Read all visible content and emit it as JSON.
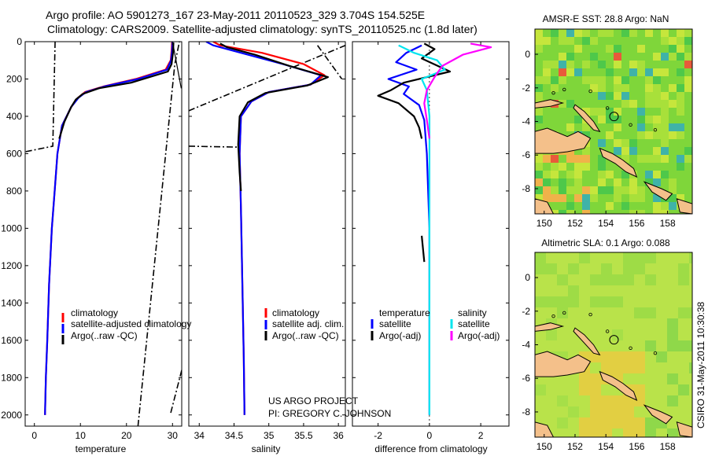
{
  "title_line1": "Argo profile: AO 5901273_167 23-May-2011 20110523_329 3.704S 154.525E",
  "title_line2": "Climatology: CARS2009. Satellite-adjusted climatology: synTS_20110525.nc (1.8d later)",
  "credit_line1": "US ARGO PROJECT",
  "credit_line2": "PI: GREGORY C. JOHNSON",
  "timestamp": "CSIRO 31-May-2011 10:30:38",
  "colors": {
    "climatology": "#ff0000",
    "satellite": "#0000ff",
    "argo": "#000000",
    "sal_satellite": "#00e5ee",
    "sal_argo": "#ff00ff",
    "land": "#f4c08a"
  },
  "chart_data": [
    {
      "type": "line",
      "name": "temperature-profile",
      "xlabel": "temperature",
      "ylabel": "",
      "xlim": [
        -2,
        32
      ],
      "ylim": [
        2060,
        0
      ],
      "xticks": [
        0,
        10,
        20,
        30
      ],
      "yticks": [
        0,
        200,
        400,
        600,
        800,
        1000,
        1200,
        1400,
        1600,
        1800,
        2000
      ],
      "legend": [
        "climatology",
        "satellite-adjusted climatology",
        "Argo(..raw -QC)"
      ],
      "series": [
        {
          "name": "climatology",
          "color": "#ff0000",
          "x": [
            29.9,
            29.8,
            29.6,
            28.5,
            22.0,
            15.0,
            11.0,
            9.5,
            8.0,
            6.0,
            5.0,
            4.4,
            3.8,
            3.2,
            2.8,
            2.5,
            2.3
          ],
          "y": [
            0,
            50,
            100,
            150,
            200,
            240,
            270,
            300,
            350,
            450,
            600,
            800,
            1000,
            1300,
            1600,
            1800,
            2000
          ]
        },
        {
          "name": "satellite-adjusted climatology",
          "color": "#0000ff",
          "x": [
            30.0,
            29.9,
            29.7,
            28.8,
            22.5,
            15.2,
            11.2,
            9.6,
            8.0,
            6.0,
            5.0,
            4.4,
            3.8,
            3.2,
            2.8,
            2.5,
            2.3
          ],
          "y": [
            0,
            50,
            100,
            150,
            200,
            240,
            270,
            300,
            350,
            450,
            600,
            800,
            1000,
            1300,
            1600,
            1800,
            2000
          ]
        },
        {
          "name": "Argo(..raw -QC)",
          "color": "#000000",
          "x": [
            30.2,
            30.1,
            29.8,
            29.0,
            21.0,
            14.0,
            10.5,
            9.0,
            8.0,
            6.5,
            5.4
          ],
          "y": [
            5,
            60,
            120,
            160,
            220,
            250,
            280,
            310,
            350,
            430,
            520
          ]
        }
      ]
    },
    {
      "type": "line",
      "name": "salinity-profile",
      "xlabel": "salinity",
      "ylabel": "",
      "xlim": [
        33.85,
        36.1
      ],
      "ylim": [
        2060,
        0
      ],
      "xticks": [
        34,
        34.5,
        35,
        35.5,
        36
      ],
      "legend": [
        "climatology",
        "satellite adj. clim.",
        "Argo(..raw -QC)"
      ],
      "series": [
        {
          "name": "climatology",
          "color": "#ff0000",
          "x": [
            34.2,
            34.3,
            34.9,
            35.5,
            35.8,
            35.6,
            35.0,
            34.75,
            34.6,
            34.58,
            34.6,
            34.62,
            34.64,
            34.65
          ],
          "y": [
            0,
            20,
            60,
            120,
            180,
            230,
            270,
            320,
            400,
            600,
            900,
            1300,
            1700,
            2000
          ]
        },
        {
          "name": "satellite adj. clim.",
          "color": "#0000ff",
          "x": [
            34.1,
            34.2,
            34.6,
            35.2,
            35.75,
            35.6,
            35.0,
            34.75,
            34.6,
            34.58,
            34.6,
            34.62,
            34.64,
            34.65
          ],
          "y": [
            0,
            20,
            60,
            120,
            180,
            230,
            270,
            320,
            400,
            600,
            900,
            1300,
            1700,
            2000
          ]
        },
        {
          "name": "Argo(..raw -QC)",
          "color": "#000000",
          "x": [
            34.3,
            34.4,
            34.8,
            35.3,
            35.85,
            35.55,
            34.95,
            34.7,
            34.58,
            34.56,
            34.58,
            34.6
          ],
          "y": [
            10,
            30,
            70,
            130,
            190,
            235,
            275,
            325,
            400,
            550,
            700,
            800
          ]
        }
      ]
    },
    {
      "type": "line",
      "name": "difference-profile",
      "xlabel": "difference from climatology",
      "ylabel": "",
      "xlim": [
        -3.0,
        3.1
      ],
      "ylim": [
        2060,
        0
      ],
      "xticks": [
        -2,
        0,
        2
      ],
      "legend": [
        "temperature",
        "satellite",
        "Argo(-adj)",
        "salinity",
        "satellite",
        "Argo(-adj)"
      ],
      "series": [
        {
          "name": "temperature satellite",
          "color": "#0000ff",
          "x": [
            -0.3,
            -0.9,
            -1.3,
            -0.5,
            -1.6,
            -0.8,
            -1.0,
            -0.4,
            -0.2,
            -0.1,
            0.0,
            0.0,
            0.0
          ],
          "y": [
            20,
            60,
            110,
            150,
            200,
            240,
            280,
            340,
            420,
            600,
            1000,
            1600,
            2000
          ]
        },
        {
          "name": "temperature Argo(-adj)",
          "color": "#000000",
          "x": [
            -0.2,
            0.2,
            -0.3,
            0.8,
            -1.0,
            -1.5,
            -2.0,
            -1.2,
            -0.6,
            -0.4,
            -0.3
          ],
          "y": [
            10,
            40,
            90,
            160,
            220,
            260,
            290,
            330,
            400,
            460,
            520
          ]
        },
        {
          "name": "salinity satellite",
          "color": "#00e5ee",
          "x": [
            -1.2,
            -0.6,
            0.3,
            0.6,
            -0.3,
            -0.1,
            0.0,
            0.0,
            0.0,
            0.0
          ],
          "y": [
            20,
            60,
            100,
            150,
            200,
            260,
            400,
            800,
            1400,
            2000
          ]
        },
        {
          "name": "salinity Argo(-adj)",
          "color": "#ff00ff",
          "x": [
            1.6,
            2.4,
            1.3,
            0.5,
            0.2,
            -0.1,
            -0.2,
            -0.1,
            0.0
          ],
          "y": [
            10,
            30,
            70,
            130,
            190,
            260,
            330,
            420,
            520
          ]
        }
      ]
    },
    {
      "type": "heatmap",
      "name": "sst-map",
      "title": "AMSR-E SST: 28.8 Argo: NaN",
      "xlim": [
        149.4,
        159.6
      ],
      "ylim": [
        -9.5,
        1.5
      ],
      "xticks": [
        150,
        152,
        154,
        156,
        158
      ],
      "yticks": [
        0,
        -2,
        -4,
        -6,
        -8
      ],
      "marker": {
        "lon": 154.525,
        "lat": -3.704
      }
    },
    {
      "type": "heatmap",
      "name": "sla-map",
      "title": "Altimetric SLA: 0.1 Argo: 0.088",
      "xlim": [
        149.4,
        159.6
      ],
      "ylim": [
        -9.5,
        1.5
      ],
      "xticks": [
        150,
        152,
        154,
        156,
        158
      ],
      "yticks": [
        0,
        -2,
        -4,
        -6,
        -8
      ],
      "marker": {
        "lon": 154.525,
        "lat": -3.704
      }
    }
  ]
}
